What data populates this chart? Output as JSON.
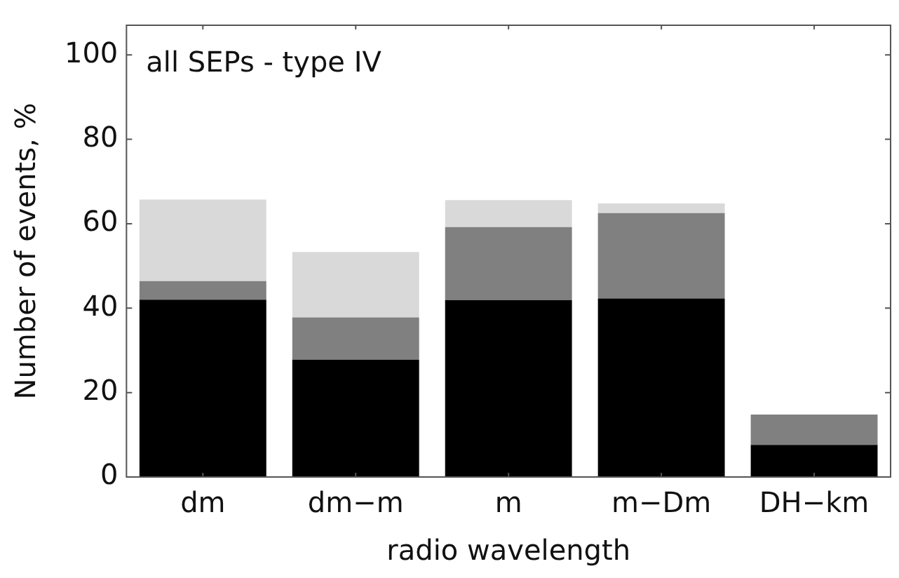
{
  "chart_data": {
    "type": "bar",
    "title": "all SEPs - type IV",
    "xlabel": "radio wavelength",
    "ylabel": "Number of events, %",
    "categories": [
      "dm",
      "dm−m",
      "m",
      "m−Dm",
      "DH−km"
    ],
    "stacked": true,
    "series": [
      {
        "color": "#000000",
        "values": [
          42,
          27.8,
          41.9,
          42.3,
          7.6
        ]
      },
      {
        "color": "#808080",
        "values": [
          4.4,
          10,
          17.3,
          20.2,
          7.2
        ]
      },
      {
        "color": "#d9d9d9",
        "values": [
          19.3,
          15.5,
          6.4,
          2.3,
          0
        ]
      }
    ],
    "ylim": [
      0,
      107
    ],
    "yticks": [
      0,
      20,
      40,
      60,
      80,
      100
    ],
    "grid": false,
    "legend": false
  }
}
